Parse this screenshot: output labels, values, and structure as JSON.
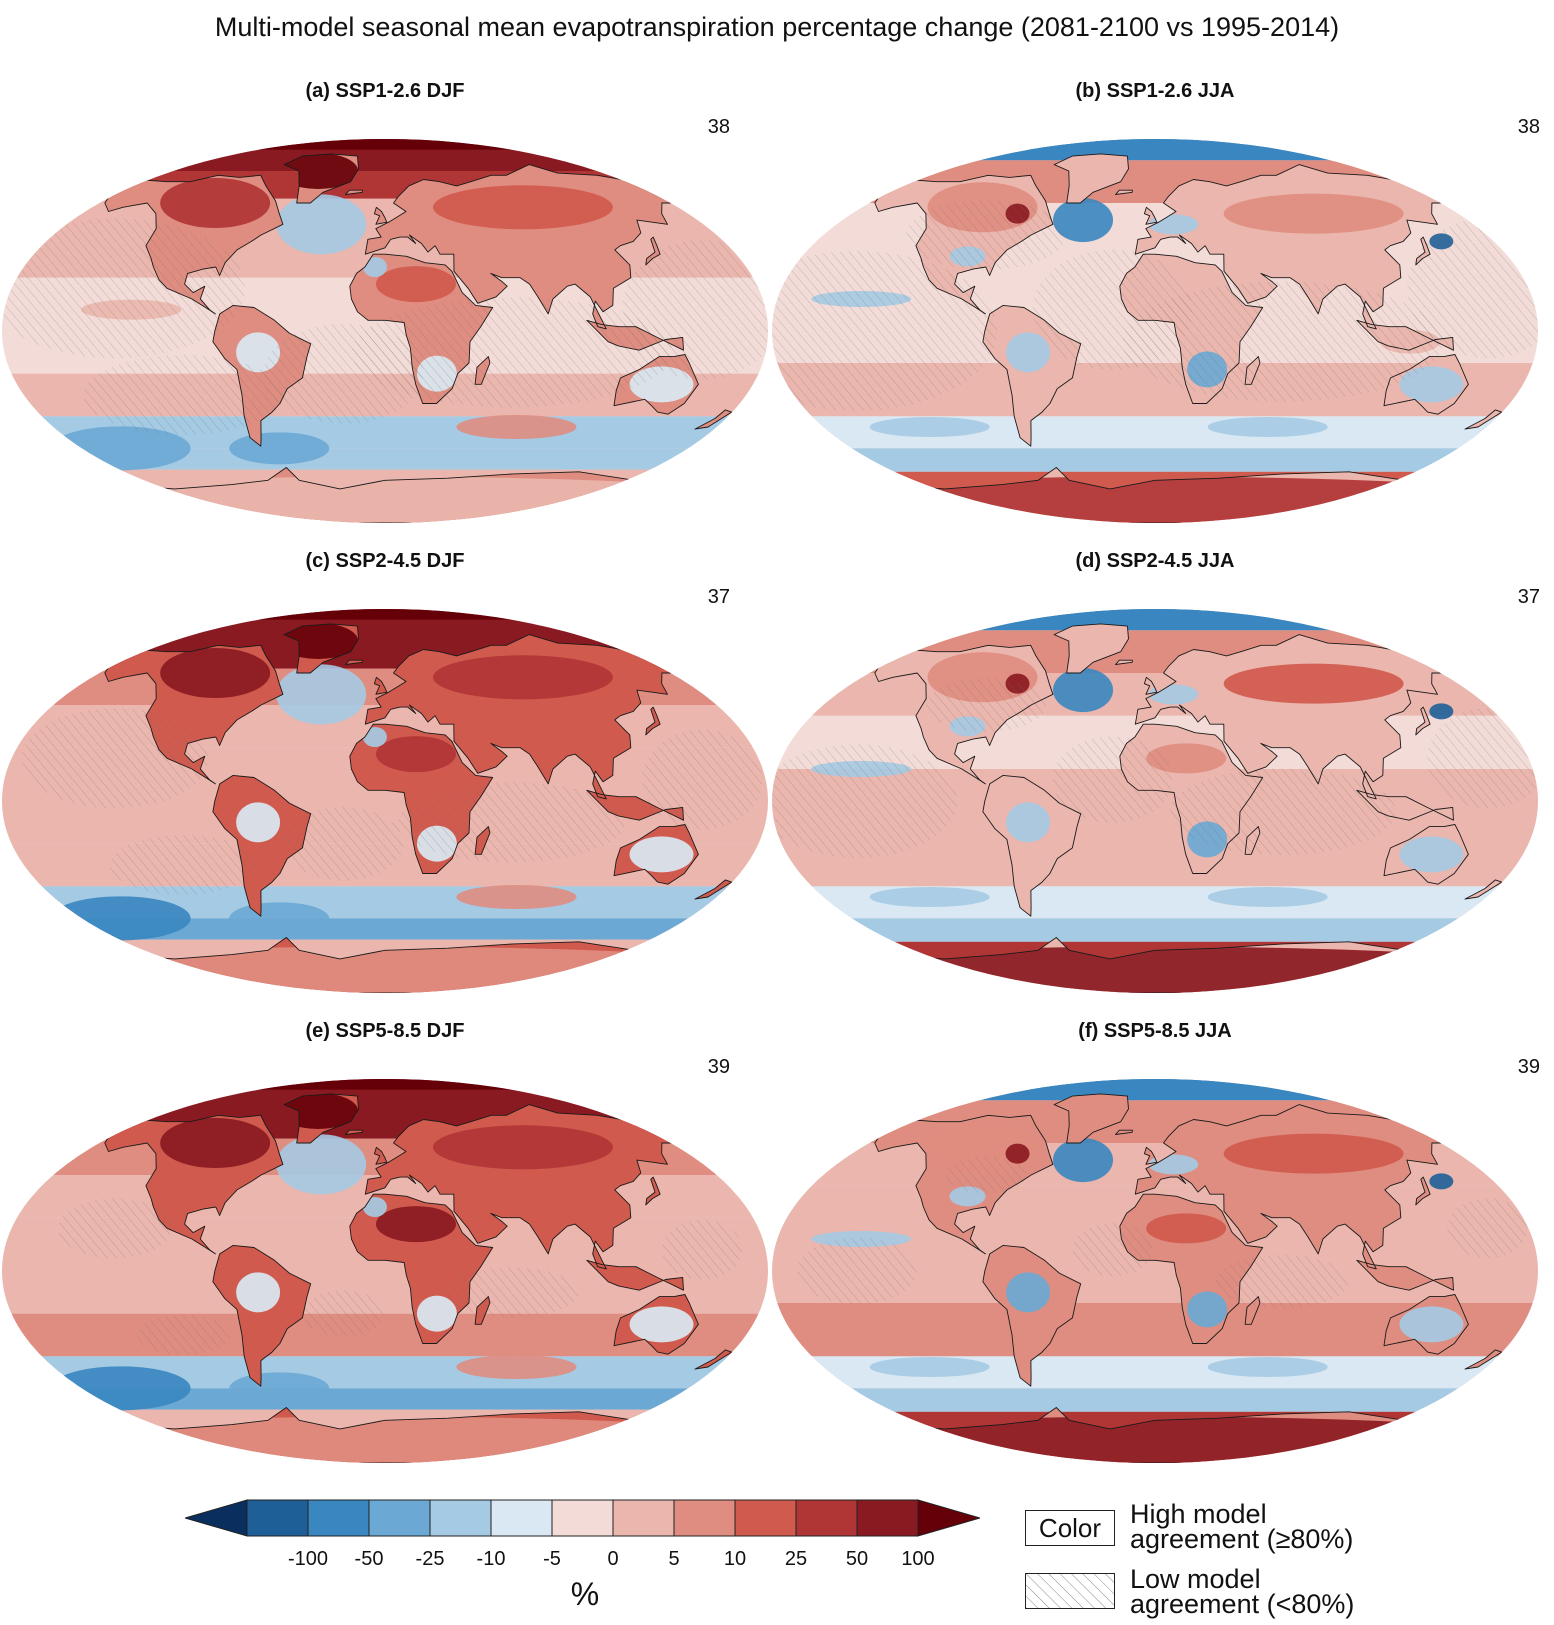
{
  "figure": {
    "title": "Multi-model seasonal mean evapotranspiration percentage change (2081-2100 vs 1995-2014)"
  },
  "panels": [
    {
      "title": "(a) SSP1-2.6 DJF",
      "count": "38",
      "scenario": "SSP1-2.6",
      "season": "DJF"
    },
    {
      "title": "(b) SSP1-2.6 JJA",
      "count": "38",
      "scenario": "SSP1-2.6",
      "season": "JJA"
    },
    {
      "title": "(c) SSP2-4.5 DJF",
      "count": "37",
      "scenario": "SSP2-4.5",
      "season": "DJF"
    },
    {
      "title": "(d) SSP2-4.5 JJA",
      "count": "37",
      "scenario": "SSP2-4.5",
      "season": "JJA"
    },
    {
      "title": "(e) SSP5-8.5 DJF",
      "count": "39",
      "scenario": "SSP5-8.5",
      "season": "DJF"
    },
    {
      "title": "(f) SSP5-8.5 JJA",
      "count": "39",
      "scenario": "SSP5-8.5",
      "season": "JJA"
    }
  ],
  "colorbar": {
    "unit": "%",
    "ticks": [
      "-100",
      "-50",
      "-25",
      "-10",
      "-5",
      "0",
      "5",
      "10",
      "25",
      "50",
      "100"
    ],
    "colors": [
      "#0a2f5e",
      "#1f5f98",
      "#3a86c0",
      "#6ba9d4",
      "#a5cae3",
      "#d9e8f2",
      "#f3dcd8",
      "#eab6ad",
      "#df8d80",
      "#d05a4d",
      "#b03535",
      "#8a1a22",
      "#650008"
    ]
  },
  "key": {
    "color_box": "Color",
    "high_line1": "High model",
    "high_line2": "agreement (≥80%)",
    "low_line1": "Low model",
    "low_line2": "agreement (<80%)"
  }
}
